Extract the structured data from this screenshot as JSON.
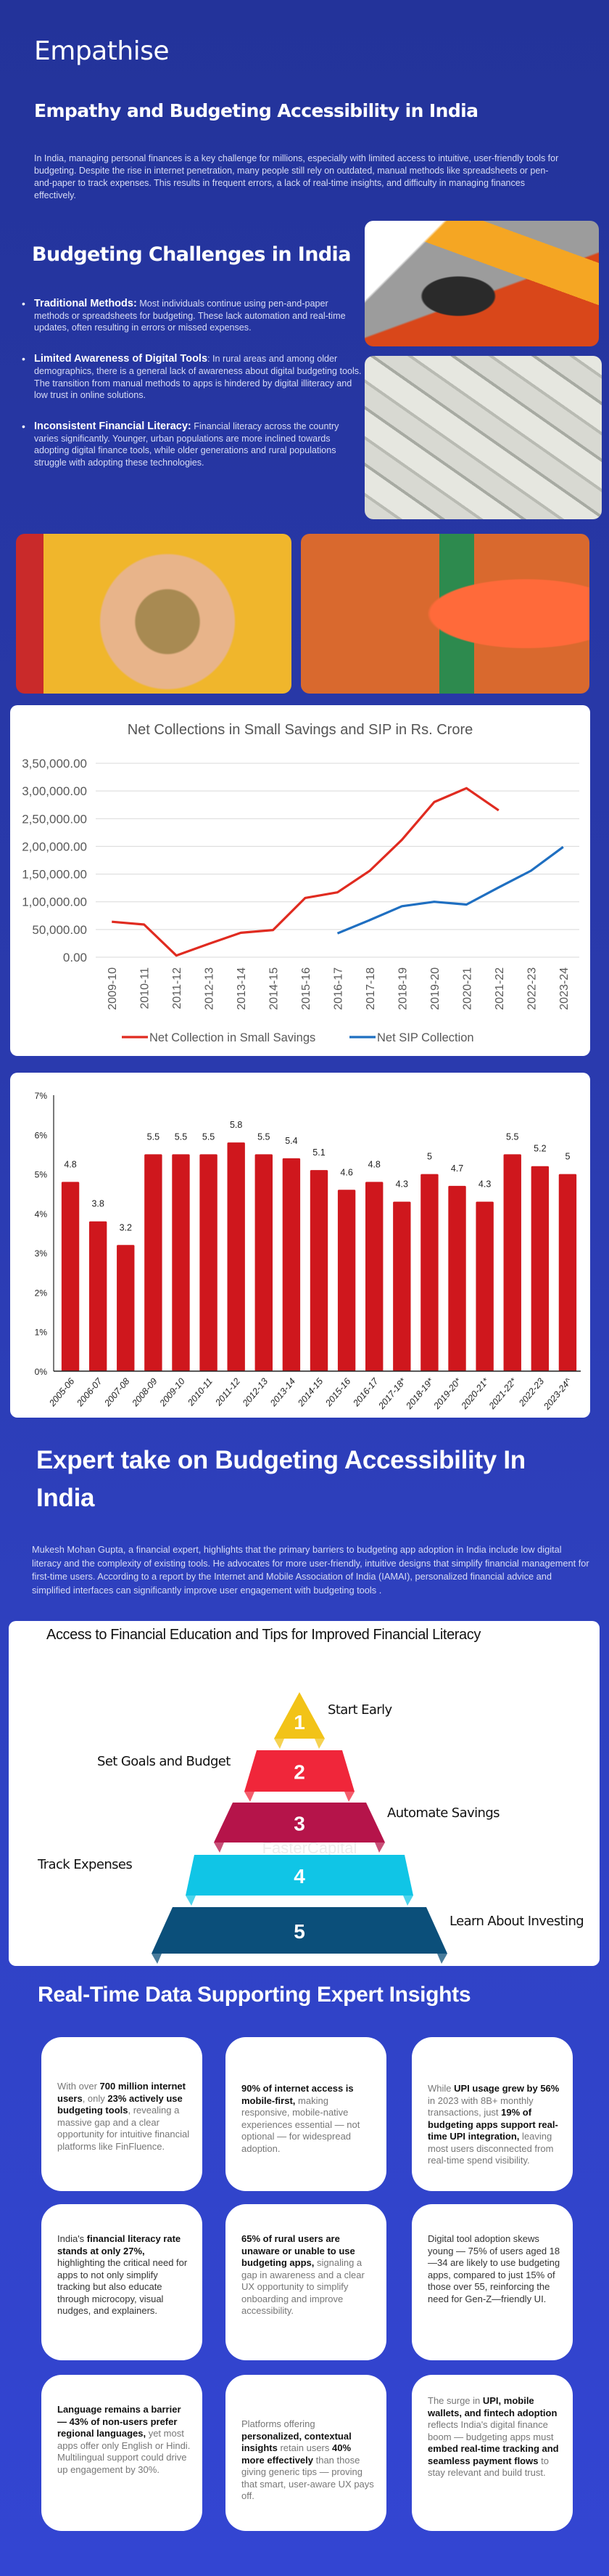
{
  "header": {
    "title": "Empathise",
    "subtitle": "Empathy and Budgeting Accessibility in India",
    "intro": "In India, managing personal finances is a key challenge for millions, especially with limited access to intuitive, user-friendly tools for budgeting. Despite the rise in internet penetration, many people still rely on outdated, manual methods like spreadsheets or pen-and-paper to track expenses. This results in frequent errors, a lack of real-time insights, and difficulty in managing finances effectively."
  },
  "challenges": {
    "title": "Budgeting Challenges in India",
    "items": [
      {
        "label": "Traditional Methods:",
        "text": " Most individuals continue using pen-and-paper methods or spreadsheets for budgeting. These lack automation and real-time updates, often resulting in errors or missed expenses."
      },
      {
        "label": "Limited Awareness of Digital Tools",
        "text": ": In rural areas and among older demographics, there is a general lack of awareness about digital budgeting tools. The transition from manual methods to apps is hindered by digital illiteracy and low trust in online solutions."
      },
      {
        "label": "Inconsistent Financial Literacy:",
        "text": " Financial literacy across the country varies significantly. Younger, urban populations are more inclined towards adopting digital finance tools, while older generations and rural populations struggle with adopting these technologies."
      }
    ]
  },
  "photos": [
    {
      "name": "calculator-notebook-photo",
      "alt": "Hands using a calculator and notebook"
    },
    {
      "name": "rupee-notes-photo",
      "alt": "Pile of 500 rupee notes"
    },
    {
      "name": "coins-in-hands-photo",
      "alt": "Coins held in cupped hands"
    },
    {
      "name": "piggy-bank-photo",
      "alt": "Orange piggy bank with cash stacks"
    }
  ],
  "chart_data": [
    {
      "type": "line",
      "title": "Net Collections in Small Savings and SIP in Rs. Crore",
      "xlabel": "",
      "ylabel": "",
      "ylim": [
        0,
        350000
      ],
      "yticks": [
        "0.00",
        "50,000.00",
        "1,00,000.00",
        "1,50,000.00",
        "2,00,000.00",
        "2,50,000.00",
        "3,00,000.00",
        "3,50,000.00"
      ],
      "grid": true,
      "legend": "bottom",
      "categories": [
        "2009-10",
        "2010-11",
        "2011-12",
        "2012-13",
        "2013-14",
        "2014-15",
        "2015-16",
        "2016-17",
        "2017-18",
        "2018-19",
        "2019-20",
        "2020-21",
        "2021-22",
        "2022-23",
        "2023-24"
      ],
      "series": [
        {
          "name": "Net Collection in Small Savings",
          "color": "#e02b20",
          "values": [
            64000,
            59000,
            3000,
            24000,
            44000,
            49000,
            107000,
            117000,
            156000,
            212000,
            280000,
            305000,
            265000,
            null,
            null
          ]
        },
        {
          "name": "Net SIP Collection",
          "color": "#1f6fc1",
          "values": [
            null,
            null,
            null,
            null,
            null,
            null,
            null,
            43000,
            67000,
            92000,
            100000,
            95000,
            126000,
            156000,
            199000
          ]
        }
      ]
    },
    {
      "type": "bar",
      "title": "",
      "xlabel": "",
      "ylabel": "",
      "ylim": [
        0,
        7
      ],
      "yticks": [
        "0%",
        "1%",
        "2%",
        "3%",
        "4%",
        "5%",
        "6%",
        "7%"
      ],
      "grid": false,
      "legend": "none",
      "color": "#cf171d",
      "categories": [
        "2005-06",
        "2006-07",
        "2007-08",
        "2008-09",
        "2009-10",
        "2010-11",
        "2011-12",
        "2012-13",
        "2013-14",
        "2014-15",
        "2015-16",
        "2016-17",
        "2017-18*",
        "2018-19*",
        "2019-20*",
        "2020-21*",
        "2021-22*",
        "2022-23",
        "2023-24^"
      ],
      "values": [
        4.8,
        3.8,
        3.2,
        5.5,
        5.5,
        5.5,
        5.8,
        5.5,
        5.4,
        5.1,
        4.6,
        4.8,
        4.3,
        5,
        4.7,
        4.3,
        5.5,
        5.2,
        5
      ],
      "labels": [
        "4.8",
        "3.8",
        "3.2",
        "5.5",
        "5.5",
        "5.5",
        "5.8",
        "5.5",
        "5.4",
        "5.1",
        "4.6",
        "4.8",
        "4.3",
        "5",
        "4.7",
        "4.3",
        "5.5",
        "5.2",
        "5"
      ]
    }
  ],
  "expert": {
    "title": "Expert take on Budgeting Accessibility In India",
    "body": "Mukesh Mohan Gupta, a financial expert, highlights that the primary barriers to budgeting app adoption in India include low digital literacy and the complexity of existing tools. He advocates for more user-friendly, intuitive designs that simplify financial management for first-time users. According to a report by the Internet and Mobile Association of India (IAMAI), personalized financial advice and simplified interfaces can significantly improve user engagement with budgeting tools ."
  },
  "pyramid": {
    "title": "Access to Financial Education and Tips for Improved Financial Literacy",
    "watermark": "FasterCapital",
    "steps": [
      {
        "num": "1",
        "label": "Start Early",
        "color": "#f2c318"
      },
      {
        "num": "2",
        "label": "Set Goals and Budget",
        "color": "#f0263a"
      },
      {
        "num": "3",
        "label": "Automate Savings",
        "color": "#b5144a"
      },
      {
        "num": "4",
        "label": "Track Expenses",
        "color": "#10c5e6"
      },
      {
        "num": "5",
        "label": "Learn About Investing",
        "color": "#0b4f7a"
      }
    ]
  },
  "insights": {
    "title": "Real-Time Data Supporting Expert Insights",
    "tiles": [
      [
        {
          "t": "With over ",
          "b": false
        },
        {
          "t": "700 million internet users",
          "b": true
        },
        {
          "t": ", only ",
          "b": false
        },
        {
          "t": "23% actively use budgeting tools",
          "b": true
        },
        {
          "t": ", revealing a massive gap and a clear opportunity for intuitive financial platforms like FinFluence.",
          "b": false
        }
      ],
      [
        {
          "t": "90% of internet access is mobile-first,",
          "b": true
        },
        {
          "t": " making responsive, mobile-native experiences essential — not optional — for widespread adoption.",
          "b": false
        }
      ],
      [
        {
          "t": "While ",
          "b": false
        },
        {
          "t": "UPI usage grew by 56%",
          "b": true
        },
        {
          "t": " in 2023 with 8B+ monthly transactions, just ",
          "b": false
        },
        {
          "t": "19% of budgeting apps support real-time UPI integration,",
          "b": true
        },
        {
          "t": " leaving most users disconnected from real-time spend visibility.",
          "b": false
        }
      ],
      [
        {
          "t": "India's ",
          "b": false
        },
        {
          "t": "financial literacy rate stands at only 27%,",
          "b": true
        },
        {
          "t": " highlighting the critical need for apps to not only simplify tracking but also educate through microcopy, visual nudges, and explainers.",
          "b": false
        }
      ],
      [
        {
          "t": "65% of rural users are unaware or unable to use budgeting apps,",
          "b": true
        },
        {
          "t": " signaling a gap in awareness and a clear UX opportunity to simplify onboarding and improve accessibility.",
          "b": false
        }
      ],
      [
        {
          "t": "Digital tool adoption skews young — 75% of users aged 18—34 are likely to use budgeting apps, compared to just 15% of those over 55, reinforcing the need for Gen-Z—friendly UI.",
          "b": false
        }
      ],
      [
        {
          "t": "Language remains a barrier — 43% of non-users prefer regional languages,",
          "b": true
        },
        {
          "t": " yet most apps offer only English or Hindi. Multilingual support could drive up engagement by 30%.",
          "b": false
        }
      ],
      [
        {
          "t": "Platforms offering ",
          "b": false
        },
        {
          "t": "personalized, contextual insights",
          "b": true
        },
        {
          "t": " retain users ",
          "b": false
        },
        {
          "t": "40% more effectively",
          "b": true
        },
        {
          "t": " than those giving generic tips — proving that smart, user-aware UX pays off.",
          "b": false
        }
      ],
      [
        {
          "t": "The surge in ",
          "b": false
        },
        {
          "t": "UPI, mobile wallets, and fintech adoption",
          "b": true
        },
        {
          "t": " reflects India's digital finance boom — budgeting apps must ",
          "b": false
        },
        {
          "t": "embed real-time tracking and seamless payment flows",
          "b": true
        },
        {
          "t": " to stay relevant and build trust.",
          "b": false
        }
      ]
    ]
  }
}
